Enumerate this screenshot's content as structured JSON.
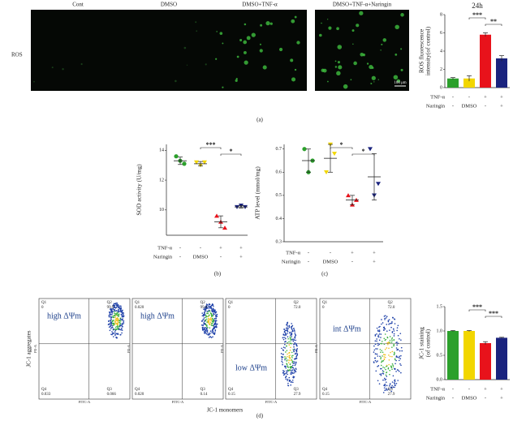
{
  "panel_a": {
    "image_labels": [
      "Cont",
      "DMSO",
      "DMSO+TNF-α",
      "DMSO+TNF-α+Naringin"
    ],
    "row_label": "ROS",
    "scale_bar": "100 μm",
    "panel_label": "(a)"
  },
  "panel_b_label": "(b)",
  "panel_c_label": "(c)",
  "panel_d": {
    "y_label": "JC-1 aggregates",
    "x_label": "JC-1 monomers",
    "panel_label": "(d)",
    "plots": [
      {
        "y_axis": "PE-A",
        "x_axis": "FITC-A",
        "annotation": "high ΔΨm",
        "quadrants": [
          {
            "name": "Q1",
            "value": "0"
          },
          {
            "name": "Q2",
            "value": "99.9"
          },
          {
            "name": "Q3",
            "value": "0.066"
          },
          {
            "name": "Q4",
            "value": "0.033"
          }
        ]
      },
      {
        "y_axis": "PE-A",
        "x_axis": "FITC-A",
        "annotation": "high ΔΨm",
        "quadrants": [
          {
            "name": "Q1",
            "value": "0.020"
          },
          {
            "name": "Q2",
            "value": "99.8"
          },
          {
            "name": "Q3",
            "value": "0.14"
          },
          {
            "name": "Q4",
            "value": "0.020"
          }
        ]
      },
      {
        "y_axis": "PE-A",
        "x_axis": "FITC-A",
        "annotation": "low ΔΨm",
        "quadrants": [
          {
            "name": "Q1",
            "value": "0"
          },
          {
            "name": "Q2",
            "value": "72.0"
          },
          {
            "name": "Q3",
            "value": "27.9"
          },
          {
            "name": "Q4",
            "value": "0.15"
          }
        ]
      },
      {
        "y_axis": "PE-A",
        "x_axis": "FITC-A",
        "annotation": "int ΔΨm",
        "quadrants": [
          {
            "name": "Q1",
            "value": "0"
          },
          {
            "name": "Q2",
            "value": "72.0"
          },
          {
            "name": "Q3",
            "value": "27.9"
          },
          {
            "name": "Q4",
            "value": "0.15"
          }
        ]
      }
    ]
  },
  "chart_data": [
    {
      "type": "bar",
      "title": "24h",
      "y_label": [
        "ROS fluorescence",
        "intensity(of control)"
      ],
      "values": [
        1.0,
        1.0,
        5.8,
        3.2
      ],
      "errors": [
        0.1,
        0.3,
        0.2,
        0.3
      ],
      "colors": [
        "#2ca02c",
        "#f2d600",
        "#e8121b",
        "#1a237e"
      ],
      "ylim": [
        0,
        8
      ],
      "yticks": [
        0,
        2,
        4,
        6,
        8
      ],
      "significance": [
        {
          "from": 1,
          "to": 2,
          "label": "***"
        },
        {
          "from": 2,
          "to": 3,
          "label": "**"
        }
      ],
      "conditions": [
        {
          "label": "TNF-α",
          "values": [
            "-",
            "-",
            "+",
            "+"
          ]
        },
        {
          "label": "Naringin",
          "values": [
            "-",
            "DMSO",
            "-",
            "+"
          ]
        }
      ]
    },
    {
      "type": "dotplot",
      "y_label": "SOD activity (U/mg)",
      "groups": [
        {
          "color": "#2ca02c",
          "marker": "circle",
          "points": [
            13.6,
            13.3,
            13.1
          ],
          "mean": 13.3,
          "sd": 0.25
        },
        {
          "color": "#f2d600",
          "marker": "triangle-down",
          "points": [
            13.2,
            13.0,
            13.2
          ],
          "mean": 13.1,
          "sd": 0.15
        },
        {
          "color": "#e8121b",
          "marker": "triangle",
          "points": [
            9.6,
            9.2,
            8.8
          ],
          "mean": 9.2,
          "sd": 0.4
        },
        {
          "color": "#1a237e",
          "marker": "triangle-down",
          "points": [
            10.2,
            10.3,
            10.2
          ],
          "mean": 10.2,
          "sd": 0.08
        }
      ],
      "ylim": [
        8.3,
        14.4
      ],
      "yticks": [
        10,
        12,
        14
      ],
      "significance": [
        {
          "from": 1,
          "to": 2,
          "label": "***"
        },
        {
          "from": 2,
          "to": 3,
          "label": "*"
        }
      ],
      "conditions": [
        {
          "label": "TNF-α",
          "values": [
            "-",
            "-",
            "+",
            "+"
          ]
        },
        {
          "label": "Naringin",
          "values": [
            "-",
            "DMSO",
            "-",
            "+"
          ]
        }
      ]
    },
    {
      "type": "dotplot",
      "y_label": "ATP level (mmol/mg)",
      "groups": [
        {
          "color": "#2ca02c",
          "marker": "circle",
          "points": [
            0.7,
            0.6,
            0.65
          ],
          "mean": 0.65,
          "sd": 0.05
        },
        {
          "color": "#f2d600",
          "marker": "triangle-down",
          "points": [
            0.6,
            0.72,
            0.68
          ],
          "mean": 0.66,
          "sd": 0.06
        },
        {
          "color": "#e8121b",
          "marker": "triangle",
          "points": [
            0.5,
            0.46,
            0.48
          ],
          "mean": 0.48,
          "sd": 0.02
        },
        {
          "color": "#1a237e",
          "marker": "triangle-down",
          "points": [
            0.7,
            0.5,
            0.55
          ],
          "mean": 0.58,
          "sd": 0.1
        }
      ],
      "ylim": [
        0.3,
        0.72
      ],
      "yticks": [
        0.3,
        0.4,
        0.5,
        0.6,
        0.7
      ],
      "significance": [
        {
          "from": 1,
          "to": 2,
          "label": "*"
        },
        {
          "from": 2,
          "to": 3,
          "label": "*"
        }
      ],
      "conditions": [
        {
          "label": "TNF-α",
          "values": [
            "-",
            "-",
            "+",
            "+"
          ]
        },
        {
          "label": "Naringin",
          "values": [
            "-",
            "DMSO",
            "-",
            "+"
          ]
        }
      ]
    },
    {
      "type": "bar",
      "y_label": [
        "JC-1 staining",
        "(of control)"
      ],
      "values": [
        1.0,
        1.0,
        0.75,
        0.86
      ],
      "errors": [
        0.01,
        0.01,
        0.03,
        0.01
      ],
      "colors": [
        "#2ca02c",
        "#f2d600",
        "#e8121b",
        "#1a237e"
      ],
      "ylim": [
        0,
        1.5
      ],
      "yticks": [
        {
          "value": 0,
          "label": "0.0"
        },
        {
          "value": 0.5,
          "label": "0.5"
        },
        {
          "value": 1,
          "label": "1.0"
        },
        {
          "value": 1.5,
          "label": "1.5"
        }
      ],
      "significance": [
        {
          "from": 1,
          "to": 2,
          "label": "***"
        },
        {
          "from": 2,
          "to": 3,
          "label": "***"
        }
      ],
      "conditions": [
        {
          "label": "TNF-α",
          "values": [
            "-",
            "-",
            "+",
            "+"
          ]
        },
        {
          "label": "Naringin",
          "values": [
            "-",
            "DMSO",
            "-",
            "+"
          ]
        }
      ]
    }
  ]
}
